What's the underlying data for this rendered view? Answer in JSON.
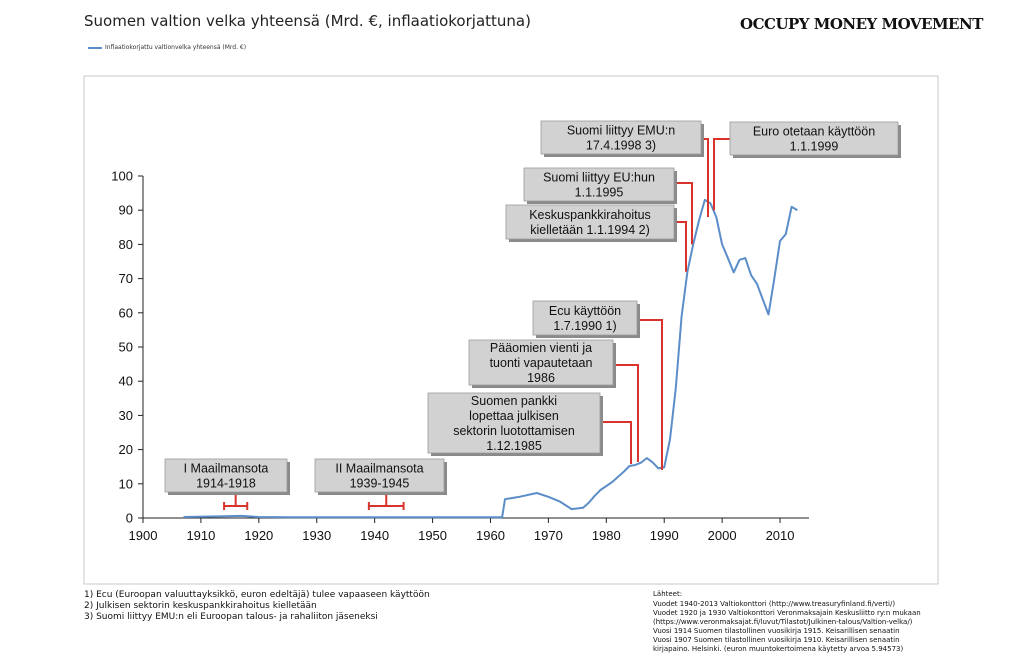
{
  "header": {
    "title": "Suomen valtion velka yhteensä (Mrd. €, inflaatiokorjattuna)",
    "brand": "OCCUPY MONEY MOVEMENT"
  },
  "chart_data": {
    "type": "line",
    "title": "Suomen valtion velka yhteensä (Mrd. €, inflaatiokorjattuna)",
    "xlabel": "",
    "ylabel": "",
    "xlim": [
      1900,
      2015
    ],
    "ylim": [
      0,
      100
    ],
    "x_ticks": [
      1900,
      1910,
      1920,
      1930,
      1940,
      1950,
      1960,
      1970,
      1980,
      1990,
      2000,
      2010
    ],
    "y_ticks": [
      0,
      10,
      20,
      30,
      40,
      50,
      60,
      70,
      80,
      90,
      100
    ],
    "grid": false,
    "legend": "top-left",
    "line_color": "#5b8dc8",
    "series": [
      {
        "name": "Inflaatiokorjattu valtionvelka yhteensä (Mrd. €)",
        "points": [
          [
            1907,
            0.3
          ],
          [
            1914,
            0.5
          ],
          [
            1917,
            0.6
          ],
          [
            1920,
            0.3
          ],
          [
            1925,
            0.2
          ],
          [
            1930,
            0.2
          ],
          [
            1940,
            0.2
          ],
          [
            1950,
            0.2
          ],
          [
            1955,
            0.2
          ],
          [
            1962,
            0.2
          ],
          [
            1962.5,
            5.5
          ],
          [
            1965,
            6.2
          ],
          [
            1968,
            7.3
          ],
          [
            1970,
            6.2
          ],
          [
            1972,
            4.8
          ],
          [
            1974,
            2.6
          ],
          [
            1976,
            3.0
          ],
          [
            1977,
            4.5
          ],
          [
            1978,
            6.5
          ],
          [
            1979,
            8.2
          ],
          [
            1981,
            10.5
          ],
          [
            1983,
            13.5
          ],
          [
            1984,
            15.2
          ],
          [
            1985,
            15.5
          ],
          [
            1986,
            16.2
          ],
          [
            1987,
            17.5
          ],
          [
            1988,
            16.3
          ],
          [
            1989,
            14.5
          ],
          [
            1990,
            14.8
          ],
          [
            1991,
            23
          ],
          [
            1992,
            38
          ],
          [
            1993,
            59
          ],
          [
            1994,
            72
          ],
          [
            1995,
            80
          ],
          [
            1996,
            87
          ],
          [
            1997,
            93
          ],
          [
            1998,
            92
          ],
          [
            1999,
            88
          ],
          [
            2000,
            80
          ],
          [
            2001,
            76
          ],
          [
            2002,
            71.8
          ],
          [
            2003,
            75.5
          ],
          [
            2004,
            76
          ],
          [
            2005,
            71
          ],
          [
            2006,
            68.5
          ],
          [
            2007,
            64
          ],
          [
            2008,
            59.5
          ],
          [
            2009,
            70
          ],
          [
            2010,
            81
          ],
          [
            2011,
            83
          ],
          [
            2012,
            91
          ],
          [
            2013,
            90
          ]
        ]
      }
    ],
    "annotations": [
      {
        "id": "ww1",
        "lines": [
          "I Maailmansota",
          "1914-1918"
        ],
        "range": [
          1914,
          1918
        ]
      },
      {
        "id": "ww2",
        "lines": [
          "II Maailmansota",
          "1939-1945"
        ],
        "range": [
          1939,
          1945
        ]
      },
      {
        "id": "suomen-pankki",
        "lines": [
          "Suomen pankki",
          "lopettaa julkisen",
          "sektorin luotottamisen",
          "1.12.1985"
        ],
        "x": 1985.9
      },
      {
        "id": "paaomien",
        "lines": [
          "Pääomien vienti ja",
          "tuonti vapautetaan",
          "1986"
        ],
        "x": 1986.5
      },
      {
        "id": "ecu",
        "lines": [
          "Ecu käyttöön",
          "1.7.1990 1)"
        ],
        "x": 1990.5
      },
      {
        "id": "keskuspankki",
        "lines": [
          "Keskuspankkirahoitus",
          "kielletään 1.1.1994 2)"
        ],
        "x": 1994
      },
      {
        "id": "eu",
        "lines": [
          "Suomi liittyy EU:hun",
          "1.1.1995"
        ],
        "x": 1995
      },
      {
        "id": "emu",
        "lines": [
          "Suomi liittyy EMU:n",
          "17.4.1998 3)"
        ],
        "x": 1998.3
      },
      {
        "id": "euro",
        "lines": [
          "Euro otetaan käyttöön",
          "1.1.1999"
        ],
        "x": 1999
      }
    ],
    "annotation_color": "#d9342b"
  },
  "footnotes": [
    "1) Ecu (Euroopan valuuttayksikkö, euron edeltäjä) tulee vapaaseen käyttöön",
    "2) Julkisen sektorin keskuspankkirahoitus kielletään",
    "3) Suomi liittyy EMU:n eli Euroopan talous- ja rahaliiton jäseneksi"
  ],
  "sources": {
    "heading": "Lähteet:",
    "lines": [
      "Vuodet 1940-2013 Valtiokonttori (http://www.treasuryfinland.fi/verti/)",
      "Vuodet 1920 ja 1930 Valtiokonttori Veronmaksajain Keskusliitto ry:n mukaan",
      "(https://www.veronmaksajat.fi/luvut/Tilastot/Julkinen-talous/Valtion-velka/)",
      "Vuosi 1914 Suomen tilastollinen vuosikirja 1915. Keisarillisen senaatin",
      "Vuosi 1907 Suomen tilastollinen vuosikirja 1910. Keisarillisen senaatin",
      "kirjapaino. Helsinki. (euron muuntokertoimena käytetty arvoa 5.94573)"
    ]
  }
}
